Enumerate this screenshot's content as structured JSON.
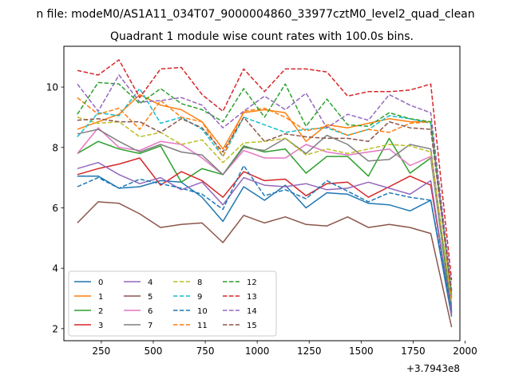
{
  "chart_data": {
    "type": "line",
    "suptitle": "n file: modeM0/AS1A11_034T07_9000004860_33977cztM0_level2_quad_clean",
    "title": "Quadrant 1 module wise count rates with 100.0s bins.",
    "xlabel": "",
    "ylabel": "",
    "offset_label": "+3.7943e8",
    "xlim": [
      70,
      1975
    ],
    "ylim": [
      1.6,
      11.35
    ],
    "x_ticks": [
      250,
      500,
      750,
      1000,
      1250,
      1500,
      1750,
      2000
    ],
    "y_ticks": [
      2,
      4,
      6,
      8,
      10
    ],
    "x": [
      135,
      235,
      335,
      435,
      535,
      635,
      735,
      835,
      935,
      1035,
      1135,
      1235,
      1335,
      1435,
      1535,
      1635,
      1735,
      1835,
      1935
    ],
    "legend_position": "lower-left",
    "series": [
      {
        "name": "0",
        "color": "#1f77b4",
        "style": "solid",
        "values": [
          7.05,
          7.05,
          6.65,
          6.7,
          6.9,
          6.85,
          6.35,
          5.55,
          6.7,
          6.25,
          6.75,
          6.0,
          6.5,
          6.45,
          6.15,
          6.1,
          5.9,
          6.25,
          2.4
        ]
      },
      {
        "name": "1",
        "color": "#ff7f0e",
        "style": "solid",
        "values": [
          8.6,
          8.85,
          9.1,
          9.75,
          9.4,
          9.25,
          8.85,
          7.95,
          9.15,
          9.25,
          9.15,
          8.2,
          8.75,
          8.65,
          8.8,
          8.95,
          8.85,
          8.85,
          3.05
        ]
      },
      {
        "name": "2",
        "color": "#2ca02c",
        "style": "solid",
        "values": [
          7.8,
          8.2,
          7.95,
          7.8,
          8.05,
          6.85,
          7.3,
          7.1,
          8.05,
          7.85,
          7.95,
          7.15,
          7.7,
          7.7,
          7.05,
          8.3,
          7.15,
          7.65,
          2.55
        ]
      },
      {
        "name": "3",
        "color": "#d62728",
        "style": "solid",
        "values": [
          7.1,
          7.3,
          7.45,
          7.65,
          6.75,
          7.2,
          6.9,
          6.35,
          7.2,
          6.9,
          6.95,
          6.4,
          6.8,
          6.85,
          6.35,
          6.7,
          7.05,
          6.75,
          2.5
        ]
      },
      {
        "name": "4",
        "color": "#9467bd",
        "style": "solid",
        "values": [
          7.3,
          7.5,
          7.1,
          6.8,
          7.0,
          6.6,
          6.85,
          6.1,
          7.0,
          6.75,
          6.7,
          6.8,
          6.6,
          6.65,
          6.85,
          6.65,
          6.45,
          6.9,
          2.45
        ]
      },
      {
        "name": "5",
        "color": "#8c564b",
        "style": "solid",
        "values": [
          5.5,
          6.2,
          6.15,
          5.8,
          5.35,
          5.45,
          5.5,
          4.85,
          5.75,
          5.5,
          5.7,
          5.45,
          5.4,
          5.7,
          5.35,
          5.45,
          5.35,
          5.15,
          2.05
        ]
      },
      {
        "name": "6",
        "color": "#e377c2",
        "style": "solid",
        "values": [
          7.8,
          8.65,
          8.0,
          7.9,
          8.2,
          8.1,
          7.65,
          7.1,
          7.9,
          7.65,
          7.65,
          8.1,
          7.85,
          7.75,
          7.85,
          7.95,
          7.4,
          7.7,
          2.8
        ]
      },
      {
        "name": "7",
        "color": "#7f7f7f",
        "style": "solid",
        "values": [
          8.45,
          8.6,
          8.2,
          7.85,
          8.1,
          7.85,
          7.75,
          7.1,
          8.0,
          7.9,
          8.3,
          7.8,
          8.4,
          8.1,
          7.55,
          7.6,
          8.1,
          7.95,
          2.7
        ]
      },
      {
        "name": "8",
        "color": "#bcbd22",
        "style": "dashed",
        "values": [
          9.0,
          8.8,
          8.85,
          8.35,
          8.5,
          8.1,
          8.25,
          7.5,
          8.15,
          8.2,
          8.3,
          7.75,
          7.95,
          7.8,
          7.95,
          8.1,
          8.05,
          7.85,
          2.85
        ]
      },
      {
        "name": "9",
        "color": "#17becf",
        "style": "dashed",
        "values": [
          8.35,
          9.15,
          9.05,
          9.95,
          8.8,
          9.0,
          8.6,
          7.7,
          9.0,
          8.75,
          8.5,
          8.6,
          8.65,
          8.4,
          8.6,
          9.05,
          8.95,
          8.8,
          3.1
        ]
      },
      {
        "name": "10",
        "color": "#1f77b4",
        "style": "dashed",
        "values": [
          6.7,
          7.0,
          6.65,
          6.95,
          6.8,
          6.65,
          6.45,
          5.95,
          7.4,
          6.4,
          6.6,
          6.3,
          6.9,
          6.55,
          6.2,
          6.5,
          6.35,
          6.25,
          2.6
        ]
      },
      {
        "name": "11",
        "color": "#ff7f0e",
        "style": "dashed",
        "values": [
          9.65,
          9.1,
          9.3,
          8.6,
          9.55,
          9.0,
          8.85,
          7.7,
          9.2,
          9.3,
          9.0,
          8.55,
          8.7,
          8.4,
          8.6,
          8.5,
          8.8,
          8.85,
          3.0
        ]
      },
      {
        "name": "12",
        "color": "#2ca02c",
        "style": "dashed",
        "values": [
          9.1,
          10.15,
          10.1,
          9.45,
          9.95,
          9.45,
          9.25,
          8.85,
          9.95,
          9.0,
          10.1,
          8.7,
          9.6,
          8.75,
          8.7,
          9.15,
          8.95,
          8.85,
          3.25
        ]
      },
      {
        "name": "13",
        "color": "#d62728",
        "style": "dashed",
        "values": [
          10.55,
          10.4,
          10.9,
          9.65,
          10.6,
          10.65,
          9.75,
          9.2,
          10.6,
          9.85,
          10.6,
          10.6,
          10.5,
          9.7,
          9.85,
          9.85,
          9.9,
          10.1,
          3.6
        ]
      },
      {
        "name": "14",
        "color": "#9467bd",
        "style": "dashed",
        "values": [
          10.1,
          9.2,
          10.4,
          9.5,
          9.55,
          9.65,
          9.4,
          8.65,
          9.2,
          9.7,
          9.25,
          9.8,
          8.65,
          9.1,
          8.9,
          9.75,
          9.4,
          9.15,
          3.3
        ]
      },
      {
        "name": "15",
        "color": "#8c564b",
        "style": "dashed",
        "values": [
          8.9,
          8.95,
          8.85,
          8.85,
          8.5,
          8.95,
          8.65,
          7.85,
          9.0,
          8.2,
          8.45,
          8.35,
          8.3,
          8.3,
          8.2,
          8.85,
          8.65,
          8.6,
          3.15
        ]
      }
    ]
  }
}
